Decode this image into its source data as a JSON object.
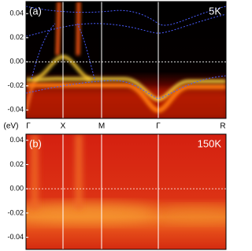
{
  "chart_data": [
    {
      "type": "heatmap",
      "panel_label": "(a)",
      "temperature": "5K",
      "ylim": [
        -0.047,
        0.05
      ],
      "yticks": [
        0.04,
        0.02,
        {
          "value": 0,
          "label": "0.00"
        },
        -0.02,
        -0.04
      ]
    },
    {
      "type": "heatmap",
      "panel_label": "(b)",
      "temperature": "150K",
      "ylim": [
        -0.05,
        0.045
      ],
      "yticks": [
        0.04,
        0.02,
        {
          "value": 0,
          "label": "0.00"
        },
        -0.02,
        -0.04
      ]
    }
  ],
  "k_axis": {
    "unit": "(eV)",
    "k_points": [
      "Γ",
      "X",
      "M",
      "Γ",
      "R"
    ]
  }
}
